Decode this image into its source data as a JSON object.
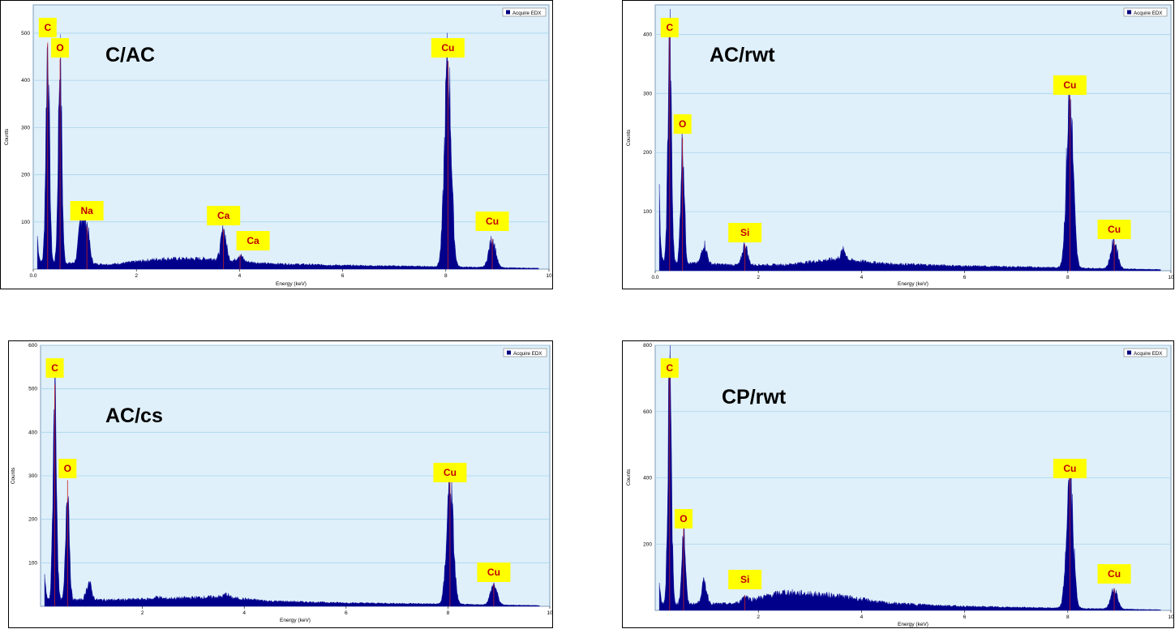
{
  "chart_data": [
    {
      "type": "area",
      "sample_name": "C/AC",
      "xlabel": "Energy (keV)",
      "ylabel": "Counts",
      "legend": "Acquire EDX",
      "legend_position": "top-right",
      "xlim": [
        0,
        10
      ],
      "ylim": [
        0,
        560
      ],
      "xticks": [
        "0.0",
        "2",
        "4",
        "6",
        "8",
        "10"
      ],
      "yticks": [
        "100",
        "200",
        "300",
        "400",
        "500"
      ],
      "grid": true,
      "baseline": [
        [
          0.08,
          15
        ],
        [
          1.5,
          10
        ],
        [
          2.5,
          22
        ],
        [
          3.5,
          22
        ],
        [
          4.5,
          12
        ],
        [
          6,
          8
        ],
        [
          7.5,
          6
        ],
        [
          9.8,
          2
        ]
      ],
      "peaks": [
        {
          "element": "C",
          "energy": 0.28,
          "counts": 480,
          "label": "C"
        },
        {
          "element": "O",
          "energy": 0.52,
          "counts": 445,
          "label": "O"
        },
        {
          "element": "Na",
          "energy": 1.04,
          "counts": 90,
          "label": "Na"
        },
        {
          "element": "Ca",
          "energy": 3.69,
          "counts": 85,
          "label": "Ca"
        },
        {
          "element": "Ca",
          "energy": 4.01,
          "counts": 30,
          "label": "Ca"
        },
        {
          "element": "Cu",
          "energy": 8.04,
          "counts": 440,
          "label": "Cu"
        },
        {
          "element": "Cu",
          "energy": 8.9,
          "counts": 65,
          "label": "Cu"
        }
      ],
      "extra_peaks": [
        {
          "energy": 0.05,
          "counts": 95
        },
        {
          "energy": 0.93,
          "counts": 105
        }
      ]
    },
    {
      "type": "area",
      "sample_name": "AC/rwt",
      "xlabel": "Energy (keV)",
      "ylabel": "Counts",
      "legend": "Acquire EDX",
      "legend_position": "top-right",
      "xlim": [
        0,
        10
      ],
      "ylim": [
        0,
        450
      ],
      "xticks": [
        "0.0",
        "2",
        "4",
        "6",
        "8",
        "10"
      ],
      "yticks": [
        "100",
        "200",
        "300",
        "400"
      ],
      "grid": true,
      "baseline": [
        [
          0.08,
          15
        ],
        [
          1.5,
          10
        ],
        [
          2.5,
          10
        ],
        [
          3.5,
          20
        ],
        [
          4.5,
          12
        ],
        [
          6,
          8
        ],
        [
          7.5,
          6
        ],
        [
          9.8,
          2
        ]
      ],
      "peaks": [
        {
          "element": "C",
          "energy": 0.28,
          "counts": 395,
          "label": "C"
        },
        {
          "element": "O",
          "energy": 0.53,
          "counts": 225,
          "label": "O"
        },
        {
          "element": "Si",
          "energy": 1.74,
          "counts": 45,
          "label": "Si"
        },
        {
          "element": "Cu",
          "energy": 8.04,
          "counts": 295,
          "label": "Cu"
        },
        {
          "element": "Cu",
          "energy": 8.9,
          "counts": 50,
          "label": "Cu"
        }
      ],
      "extra_peaks": [
        {
          "energy": 0.05,
          "counts": 175
        },
        {
          "energy": 0.95,
          "counts": 45
        },
        {
          "energy": 3.65,
          "counts": 35
        }
      ]
    },
    {
      "type": "area",
      "sample_name": "AC/cs",
      "xlabel": "Energy (keV)",
      "ylabel": "Counts",
      "legend": "Acquire EDX",
      "legend_position": "top-right",
      "xlim": [
        0,
        10
      ],
      "ylim": [
        0,
        600
      ],
      "xticks": [
        "2",
        "4",
        "6",
        "8",
        "10"
      ],
      "yticks": [
        "100",
        "200",
        "300",
        "400",
        "500",
        "600"
      ],
      "grid": true,
      "baseline": [
        [
          0.08,
          15
        ],
        [
          1.5,
          15
        ],
        [
          2.5,
          18
        ],
        [
          3.5,
          22
        ],
        [
          4.5,
          12
        ],
        [
          6,
          8
        ],
        [
          7.5,
          6
        ],
        [
          9.8,
          2
        ]
      ],
      "peaks": [
        {
          "element": "C",
          "energy": 0.28,
          "counts": 510,
          "label": "C"
        },
        {
          "element": "O",
          "energy": 0.53,
          "counts": 290,
          "label": "O"
        },
        {
          "element": "Cu",
          "energy": 8.04,
          "counts": 285,
          "label": "Cu"
        },
        {
          "element": "Cu",
          "energy": 8.9,
          "counts": 50,
          "label": "Cu"
        }
      ],
      "extra_peaks": [
        {
          "energy": 0.05,
          "counts": 95
        },
        {
          "energy": 0.95,
          "counts": 55
        },
        {
          "energy": 2.3,
          "counts": 22
        },
        {
          "energy": 3.65,
          "counts": 28
        }
      ]
    },
    {
      "type": "area",
      "sample_name": "CP/rwt",
      "xlabel": "Energy (keV)",
      "ylabel": "Counts",
      "legend": "Acquire EDX",
      "legend_position": "top-right",
      "xlim": [
        0,
        10
      ],
      "ylim": [
        0,
        800
      ],
      "xticks": [
        "2",
        "4",
        "6",
        "8",
        "10"
      ],
      "yticks": [
        "200",
        "400",
        "600",
        "800"
      ],
      "grid": true,
      "baseline": [
        [
          0.08,
          20
        ],
        [
          1.5,
          20
        ],
        [
          2.5,
          55
        ],
        [
          3.5,
          45
        ],
        [
          4.5,
          22
        ],
        [
          6,
          12
        ],
        [
          7.5,
          8
        ],
        [
          9.8,
          2
        ]
      ],
      "peaks": [
        {
          "element": "C",
          "energy": 0.28,
          "counts": 720,
          "label": "C"
        },
        {
          "element": "O",
          "energy": 0.55,
          "counts": 250,
          "label": "O"
        },
        {
          "element": "Si",
          "energy": 1.74,
          "counts": 45,
          "label": "Si"
        },
        {
          "element": "Cu",
          "energy": 8.04,
          "counts": 400,
          "label": "Cu"
        },
        {
          "element": "Cu",
          "energy": 8.9,
          "counts": 65,
          "label": "Cu"
        }
      ],
      "extra_peaks": [
        {
          "energy": 0.05,
          "counts": 110
        },
        {
          "energy": 0.95,
          "counts": 85
        }
      ]
    }
  ]
}
